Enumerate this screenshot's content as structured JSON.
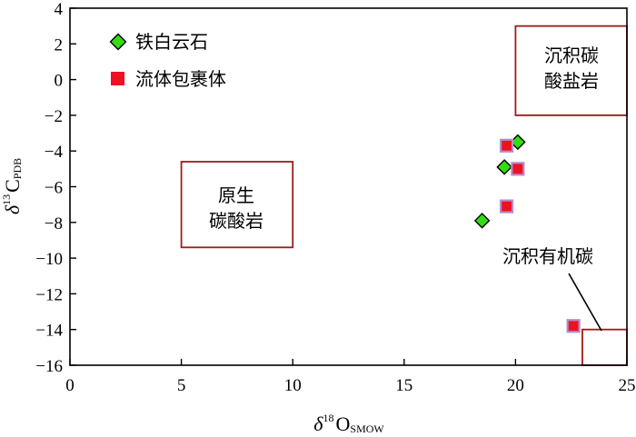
{
  "chart_data": {
    "type": "scatter",
    "xlim": [
      0,
      25
    ],
    "ylim": [
      -16,
      4
    ],
    "x_ticks": [
      0,
      5,
      10,
      15,
      20,
      25
    ],
    "y_ticks": [
      4,
      2,
      0,
      -2,
      -4,
      -6,
      -8,
      -10,
      -12,
      -14,
      -16
    ],
    "xlabel": {
      "symbol": "δ",
      "sup": "18",
      "main": "O",
      "sub": "SMOW"
    },
    "ylabel": {
      "symbol": "δ",
      "sup": "13",
      "main": "C",
      "sub": "PDB"
    },
    "legend": {
      "placement": "top-left",
      "entries": [
        {
          "label": "铁白云石",
          "marker": "diamond",
          "color": "#33dd11"
        },
        {
          "label": "流体包裹体",
          "marker": "square",
          "color": "#ee1122"
        }
      ]
    },
    "series": [
      {
        "name": "铁白云石",
        "marker": "diamond",
        "color": "#33dd11",
        "points": [
          {
            "x": 18.5,
            "y": -7.9
          },
          {
            "x": 19.5,
            "y": -4.9
          },
          {
            "x": 20.1,
            "y": -3.5
          }
        ]
      },
      {
        "name": "流体包裹体",
        "marker": "square",
        "color": "#ee1122",
        "points": [
          {
            "x": 19.6,
            "y": -3.7
          },
          {
            "x": 20.1,
            "y": -5.0
          },
          {
            "x": 19.6,
            "y": -7.1
          },
          {
            "x": 22.6,
            "y": -13.8
          }
        ]
      }
    ],
    "zones": [
      {
        "id": "primary-carbonate",
        "lines": [
          "原生",
          "碳酸岩"
        ],
        "x": [
          5,
          10
        ],
        "y": [
          -9.4,
          -4.6
        ]
      },
      {
        "id": "sedimentary-carbonate",
        "lines": [
          "沉积碳",
          "酸盐岩"
        ],
        "x": [
          20,
          25
        ],
        "y": [
          -2,
          3
        ]
      },
      {
        "id": "sedimentary-organic-carbon",
        "lines": [
          "沉积有机碳"
        ],
        "x": [
          23,
          25
        ],
        "y": [
          -16,
          -14
        ]
      }
    ],
    "zone_color": "#a01a1a",
    "grid": false
  }
}
